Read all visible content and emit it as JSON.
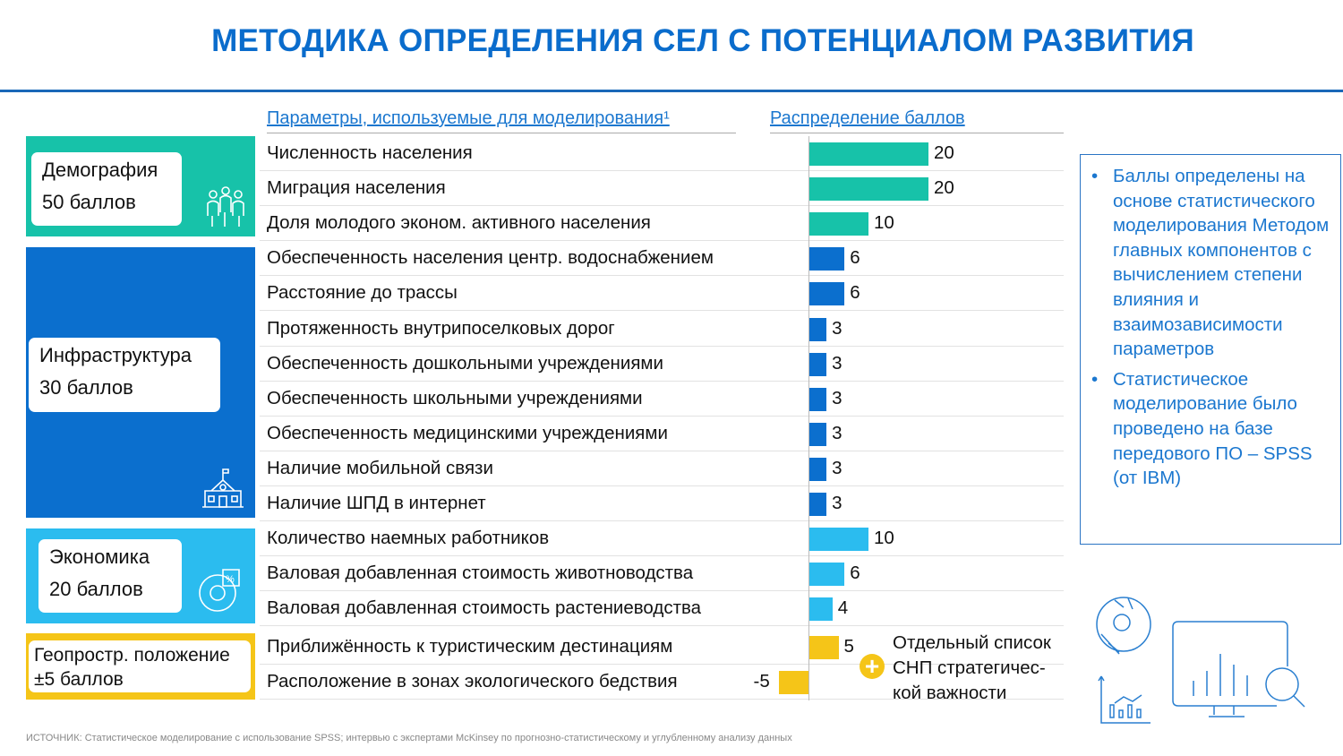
{
  "title": "МЕТОДИКА ОПРЕДЕЛЕНИЯ СЕЛ С ПОТЕНЦИАЛОМ РАЗВИТИЯ",
  "headers": {
    "params": "Параметры, используемые для моделирования¹",
    "scores": "Распределение баллов"
  },
  "categories": [
    {
      "name": "Демография",
      "points": "50 баллов",
      "color": "#17c2a9",
      "icon": "people-icon"
    },
    {
      "name": "Инфраструктура",
      "points": "30 баллов",
      "color": "#0b6fce",
      "icon": "school-icon"
    },
    {
      "name": "Экономика",
      "points": "20 баллов",
      "color": "#2bbcef",
      "icon": "pie-percent-icon"
    },
    {
      "name": "Геопростр. положение",
      "points": "±5 баллов",
      "color": "#f5c518",
      "icon": ""
    }
  ],
  "parameters": [
    {
      "name": "Численность населения",
      "value": 20,
      "cat": 0
    },
    {
      "name": "Миграция населения",
      "value": 20,
      "cat": 0
    },
    {
      "name": "Доля молодого эконом. активного населения",
      "value": 10,
      "cat": 0
    },
    {
      "name": "Обеспеченность населения центр. водоснабжением",
      "value": 6,
      "cat": 1
    },
    {
      "name": "Расстояние до трассы",
      "value": 6,
      "cat": 1
    },
    {
      "name": "Протяженность внутрипоселковых дорог",
      "value": 3,
      "cat": 1
    },
    {
      "name": "Обеспеченность дошкольными учреждениями",
      "value": 3,
      "cat": 1
    },
    {
      "name": "Обеспеченность школьными учреждениями",
      "value": 3,
      "cat": 1
    },
    {
      "name": "Обеспеченность медицинскими учреждениями",
      "value": 3,
      "cat": 1
    },
    {
      "name": "Наличие мобильной связи",
      "value": 3,
      "cat": 1
    },
    {
      "name": "Наличие ШПД в интернет",
      "value": 3,
      "cat": 1
    },
    {
      "name": "Количество наемных работников",
      "value": 10,
      "cat": 2
    },
    {
      "name": "Валовая добавленная стоимость животноводства",
      "value": 6,
      "cat": 2
    },
    {
      "name": "Валовая добавленная стоимость растениеводства",
      "value": 4,
      "cat": 2
    },
    {
      "name": "Приближённость к туристическим дестинациям",
      "value": 5,
      "cat": 3
    },
    {
      "name": "Расположение в зонах экологического бедствия",
      "value": -5,
      "cat": 3
    }
  ],
  "side_note": "Отдельный список СНП стратегичес-кой важности",
  "side_note_lines": [
    "Отдельный список",
    "СНП стратегичес-",
    "кой важности"
  ],
  "notes": [
    "Баллы определены на основе статистического моделирования Методом главных компонентов с вычислением степени влияния и взаимозависимости параметров",
    "Статистическое моделирование было проведено на базе передового ПО – SPSS (от IBM)"
  ],
  "source": "ИСТОЧНИК: Статистическое моделирование с использование SPSS; интервью с экспертами McKinsey по прогнозно-статистическому и углубленному анализу данных"
}
